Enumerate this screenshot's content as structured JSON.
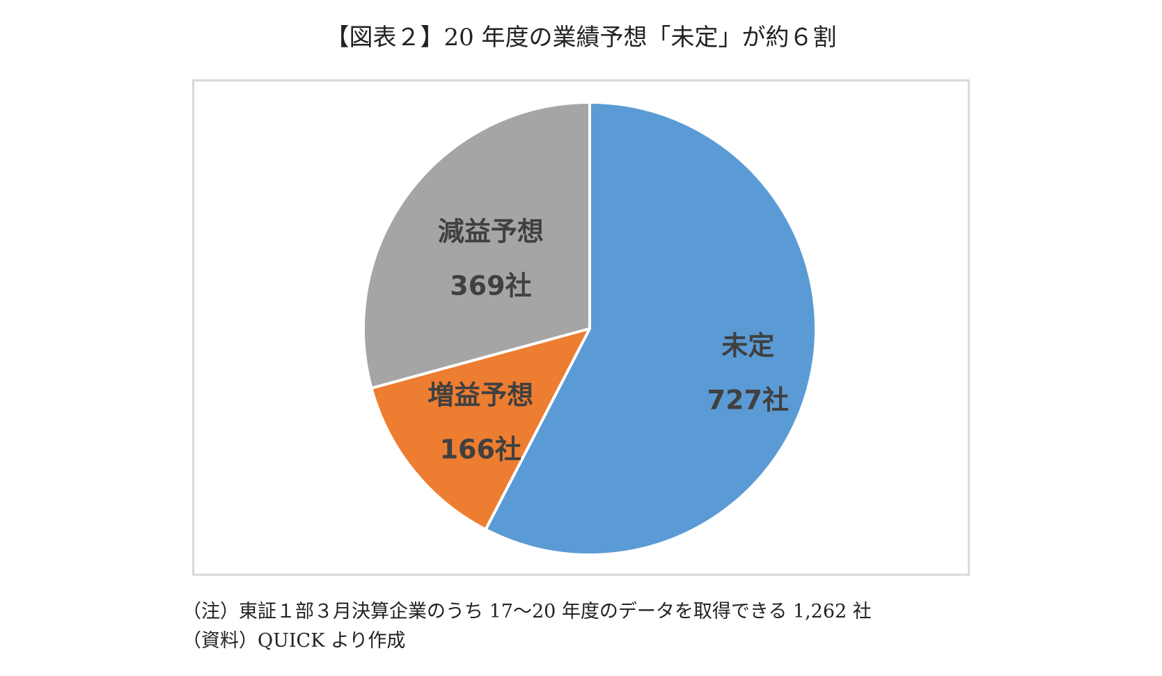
{
  "title": "【図表２】20 年度の業績予想「未定」が約６割",
  "chart_data": {
    "type": "pie",
    "title": "【図表２】20 年度の業績予想「未定」が約６割",
    "start_angle_deg": 0,
    "direction": "clockwise",
    "slices": [
      {
        "name": "未定",
        "value": 727,
        "value_label": "727社",
        "color": "#5b9bd5"
      },
      {
        "name": "増益予想",
        "value": 166,
        "value_label": "166社",
        "color": "#ed7d31"
      },
      {
        "name": "減益予想",
        "value": 369,
        "value_label": "369社",
        "color": "#a5a5a5"
      }
    ],
    "total": 1262,
    "slice_border_color": "#ffffff",
    "label_color": "#404040"
  },
  "notes": {
    "note": "（注）東証１部３月決算企業のうち 17～20 年度のデータを取得できる 1,262 社",
    "source": "（資料）QUICK より作成"
  }
}
